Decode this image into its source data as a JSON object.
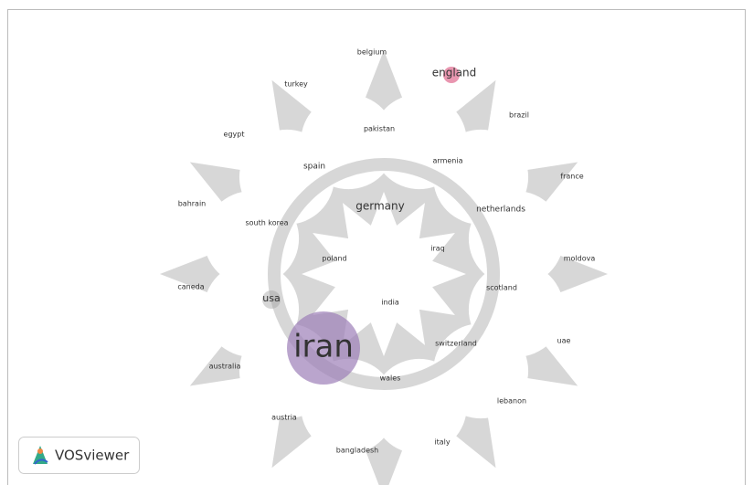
{
  "nodes": [
    {
      "label": "belgium"
    },
    {
      "label": "england"
    },
    {
      "label": "turkey"
    },
    {
      "label": "brazil"
    },
    {
      "label": "pakistan"
    },
    {
      "label": "egypt"
    },
    {
      "label": "spain"
    },
    {
      "label": "armenia"
    },
    {
      "label": "france"
    },
    {
      "label": "bahrain"
    },
    {
      "label": "germany"
    },
    {
      "label": "netherlands"
    },
    {
      "label": "south korea"
    },
    {
      "label": "iraq"
    },
    {
      "label": "poland"
    },
    {
      "label": "moldova"
    },
    {
      "label": "caneda"
    },
    {
      "label": "scotland"
    },
    {
      "label": "usa"
    },
    {
      "label": "india"
    },
    {
      "label": "uae"
    },
    {
      "label": "iran"
    },
    {
      "label": "switzerland"
    },
    {
      "label": "australia"
    },
    {
      "label": "wales"
    },
    {
      "label": "lebanon"
    },
    {
      "label": "austria"
    },
    {
      "label": "italy"
    },
    {
      "label": "bangladesh"
    }
  ],
  "logo": {
    "text": "VOSviewer"
  }
}
